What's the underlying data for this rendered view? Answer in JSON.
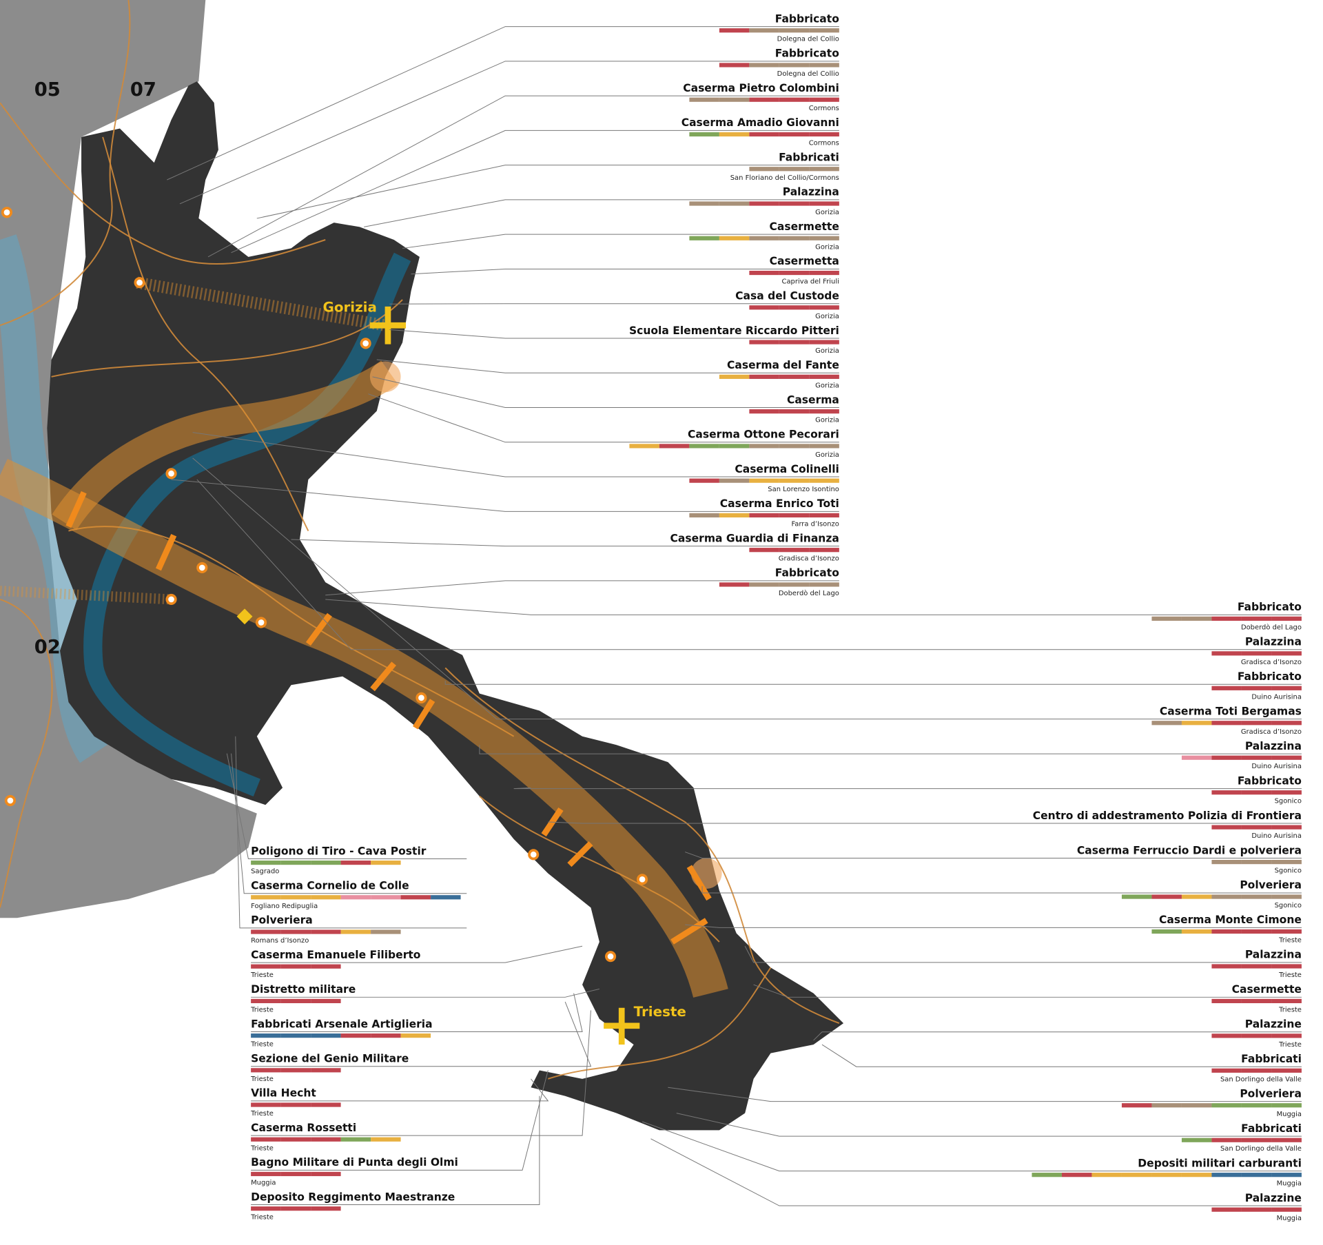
{
  "map": {
    "zones": [
      "05",
      "07",
      "02"
    ],
    "cities": [
      "Gorizia",
      "Trieste"
    ]
  },
  "sites_north": [
    {
      "name": "Fabbricato",
      "place": "Dolegna del Collio",
      "bars": [
        "#c0444e",
        "#a89078",
        "#a89078",
        "#a89078"
      ]
    },
    {
      "name": "Fabbricato",
      "place": "Dolegna del Collio",
      "bars": [
        "#c0444e",
        "#a89078",
        "#a89078",
        "#a89078"
      ]
    },
    {
      "name": "Caserma Pietro Colombini",
      "place": "Cormons",
      "bars": [
        "#a89078",
        "#a89078",
        "#c0444e",
        "#c0444e",
        "#c0444e"
      ]
    },
    {
      "name": "Caserma Amadio Giovanni",
      "place": "Cormons",
      "bars": [
        "#7fa65a",
        "#e8b040",
        "#c0444e",
        "#c0444e",
        "#c0444e"
      ]
    },
    {
      "name": "Fabbricati",
      "place": "San Floriano del Collio/Cormons",
      "bars": [
        "#a89078",
        "#a89078",
        "#a89078"
      ]
    },
    {
      "name": "Palazzina",
      "place": "Gorizia",
      "bars": [
        "#a89078",
        "#a89078",
        "#c0444e",
        "#c0444e",
        "#c0444e"
      ]
    },
    {
      "name": "Casermette",
      "place": "Gorizia",
      "bars": [
        "#7fa65a",
        "#e8b040",
        "#a89078",
        "#a89078",
        "#a89078"
      ]
    },
    {
      "name": "Casermetta",
      "place": "Capriva del Friuli",
      "bars": [
        "#c0444e",
        "#c0444e",
        "#c0444e"
      ]
    },
    {
      "name": "Casa del Custode",
      "place": "Gorizia",
      "bars": [
        "#c0444e",
        "#c0444e",
        "#c0444e"
      ]
    },
    {
      "name": "Scuola Elementare Riccardo Pitteri",
      "place": "Gorizia",
      "bars": [
        "#c0444e",
        "#c0444e",
        "#c0444e"
      ]
    },
    {
      "name": "Caserma del Fante",
      "place": "Gorizia",
      "bars": [
        "#e8b040",
        "#c0444e",
        "#c0444e",
        "#c0444e"
      ]
    },
    {
      "name": "Caserma",
      "place": "Gorizia",
      "bars": [
        "#c0444e",
        "#c0444e",
        "#c0444e"
      ]
    },
    {
      "name": "Caserma Ottone Pecorari",
      "place": "Gorizia",
      "bars": [
        "#e8b040",
        "#c0444e",
        "#7fa65a",
        "#7fa65a",
        "#a89078",
        "#a89078",
        "#a89078"
      ]
    },
    {
      "name": "Caserma Colinelli",
      "place": "San Lorenzo Isontino",
      "bars": [
        "#c0444e",
        "#a89078",
        "#e8b040",
        "#e8b040",
        "#e8b040"
      ]
    },
    {
      "name": "Caserma Enrico Toti",
      "place": "Farra d’Isonzo",
      "bars": [
        "#a89078",
        "#e8b040",
        "#c0444e",
        "#c0444e",
        "#c0444e"
      ]
    },
    {
      "name": "Caserma Guardia di Finanza",
      "place": "Gradisca d’Isonzo",
      "bars": [
        "#c0444e",
        "#c0444e",
        "#c0444e"
      ]
    },
    {
      "name": "Fabbricato",
      "place": "Doberdò del Lago",
      "bars": [
        "#c0444e",
        "#a89078",
        "#a89078",
        "#a89078"
      ]
    }
  ],
  "sites_east": [
    {
      "name": "Fabbricato",
      "place": "Doberdò del Lago",
      "bars": [
        "#a89078",
        "#a89078",
        "#c0444e",
        "#c0444e",
        "#c0444e"
      ]
    },
    {
      "name": "Palazzina",
      "place": "Gradisca d’Isonzo",
      "bars": [
        "#c0444e",
        "#c0444e",
        "#c0444e"
      ]
    },
    {
      "name": "Fabbricato",
      "place": "Duino Aurisina",
      "bars": [
        "#c0444e",
        "#c0444e",
        "#c0444e"
      ]
    },
    {
      "name": "Caserma Toti Bergamas",
      "place": "Gradisca d’Isonzo",
      "bars": [
        "#a89078",
        "#e8b040",
        "#c0444e",
        "#c0444e",
        "#c0444e"
      ]
    },
    {
      "name": "Palazzina",
      "place": "Duino Aurisina",
      "bars": [
        "#e88fa0",
        "#c0444e",
        "#c0444e",
        "#c0444e"
      ]
    },
    {
      "name": "Fabbricato",
      "place": "Sgonico",
      "bars": [
        "#c0444e",
        "#c0444e",
        "#c0444e"
      ]
    },
    {
      "name": "Centro di addestramento  Polizia di Frontiera",
      "place": "Duino Aurisina",
      "bars": [
        "#c0444e",
        "#c0444e",
        "#c0444e"
      ]
    },
    {
      "name": "Caserma Ferruccio Dardi e polveriera",
      "place": "Sgonico",
      "bars": [
        "#a89078",
        "#a89078",
        "#a89078"
      ]
    },
    {
      "name": "Polveriera",
      "place": "Sgonico",
      "bars": [
        "#7fa65a",
        "#c0444e",
        "#e8b040",
        "#a89078",
        "#a89078",
        "#a89078"
      ]
    },
    {
      "name": "Caserma Monte Cimone",
      "place": "Trieste",
      "bars": [
        "#7fa65a",
        "#e8b040",
        "#c0444e",
        "#c0444e",
        "#c0444e"
      ]
    },
    {
      "name": "Palazzina",
      "place": "Trieste",
      "bars": [
        "#c0444e",
        "#c0444e",
        "#c0444e"
      ]
    },
    {
      "name": "Casermette",
      "place": "Trieste",
      "bars": [
        "#c0444e",
        "#c0444e",
        "#c0444e"
      ]
    },
    {
      "name": "Palazzine",
      "place": "Trieste",
      "bars": [
        "#c0444e",
        "#c0444e",
        "#c0444e"
      ]
    },
    {
      "name": "Fabbricati",
      "place": "San Dorlingo della Valle",
      "bars": [
        "#c0444e",
        "#c0444e",
        "#c0444e"
      ]
    },
    {
      "name": "Polveriera",
      "place": "Muggia",
      "bars": [
        "#c0444e",
        "#a89078",
        "#a89078",
        "#7fa65a",
        "#7fa65a",
        "#7fa65a"
      ]
    },
    {
      "name": "Fabbricati",
      "place": "San Dorlingo della Valle",
      "bars": [
        "#7fa65a",
        "#c0444e",
        "#c0444e",
        "#c0444e"
      ]
    },
    {
      "name": "Depositi militari carburanti",
      "place": "Muggia",
      "bars": [
        "#7fa65a",
        "#c0444e",
        "#e8b040",
        "#e8b040",
        "#e8b040",
        "#e8b040",
        "#3a6e98",
        "#3a6e98",
        "#3a6e98"
      ]
    },
    {
      "name": "Palazzine",
      "place": "Muggia",
      "bars": [
        "#c0444e",
        "#c0444e",
        "#c0444e"
      ]
    }
  ],
  "sites_west": [
    {
      "name": "Poligono di Tiro - Cava Postir",
      "place": "Sagrado",
      "bars": [
        "#7fa65a",
        "#7fa65a",
        "#7fa65a",
        "#c0444e",
        "#e8b040"
      ]
    },
    {
      "name": "Caserma Cornelio de Colle",
      "place": "Fogliano Redipuglia",
      "bars": [
        "#e8b040",
        "#e8b040",
        "#e8b040",
        "#e88fa0",
        "#e88fa0",
        "#c0444e",
        "#3a6e98"
      ]
    },
    {
      "name": "Polveriera",
      "place": "Romans d’Isonzo",
      "bars": [
        "#c0444e",
        "#c0444e",
        "#c0444e",
        "#e8b040",
        "#a89078"
      ]
    },
    {
      "name": "Caserma Emanuele Filiberto",
      "place": "Trieste",
      "bars": [
        "#c0444e",
        "#c0444e",
        "#c0444e"
      ]
    },
    {
      "name": "Distretto militare",
      "place": "Trieste",
      "bars": [
        "#c0444e",
        "#c0444e",
        "#c0444e"
      ]
    },
    {
      "name": "Fabbricati Arsenale Artiglieria",
      "place": "Trieste",
      "bars": [
        "#3a6e98",
        "#3a6e98",
        "#3a6e98",
        "#c0444e",
        "#c0444e",
        "#e8b040"
      ]
    },
    {
      "name": "Sezione del Genio Militare",
      "place": "Trieste",
      "bars": [
        "#c0444e",
        "#c0444e",
        "#c0444e"
      ]
    },
    {
      "name": "Villa Hecht",
      "place": "Trieste",
      "bars": [
        "#c0444e",
        "#c0444e",
        "#c0444e"
      ]
    },
    {
      "name": "Caserma Rossetti",
      "place": "Trieste",
      "bars": [
        "#c0444e",
        "#c0444e",
        "#c0444e",
        "#7fa65a",
        "#e8b040"
      ]
    },
    {
      "name": "Bagno Militare di Punta degli Olmi",
      "place": "Muggia",
      "bars": [
        "#c0444e",
        "#c0444e",
        "#c0444e"
      ]
    },
    {
      "name": "Deposito Reggimento Maestranze",
      "place": "Trieste",
      "bars": [
        "#c0444e",
        "#c0444e",
        "#c0444e"
      ]
    }
  ]
}
